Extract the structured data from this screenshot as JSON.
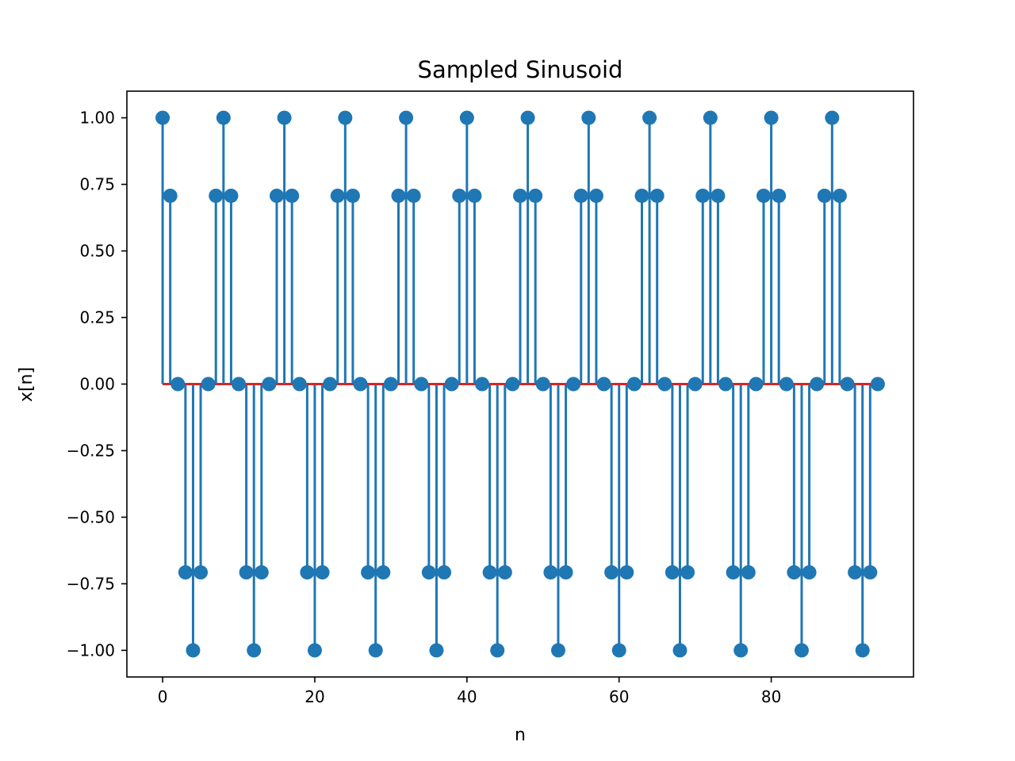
{
  "chart_data": {
    "type": "stem",
    "title": "Sampled Sinusoid",
    "xlabel": "n",
    "ylabel": "x[n]",
    "xlim": [
      -4.7,
      98.7
    ],
    "ylim": [
      -1.1,
      1.1
    ],
    "xticks": [
      0,
      20,
      40,
      60,
      80
    ],
    "xtick_labels": [
      "0",
      "20",
      "40",
      "60",
      "80"
    ],
    "yticks": [
      1.0,
      0.75,
      0.5,
      0.25,
      0.0,
      -0.25,
      -0.5,
      -0.75,
      -1.0
    ],
    "ytick_labels": [
      "1.00",
      "0.75",
      "0.50",
      "0.25",
      "0.00",
      "−0.25",
      "−0.50",
      "−0.75",
      "−1.00"
    ],
    "grid": false,
    "n": [
      0,
      1,
      2,
      3,
      4,
      5,
      6,
      7,
      8,
      9,
      10,
      11,
      12,
      13,
      14,
      15,
      16,
      17,
      18,
      19,
      20,
      21,
      22,
      23,
      24,
      25,
      26,
      27,
      28,
      29,
      30,
      31,
      32,
      33,
      34,
      35,
      36,
      37,
      38,
      39,
      40,
      41,
      42,
      43,
      44,
      45,
      46,
      47,
      48,
      49,
      50,
      51,
      52,
      53,
      54,
      55,
      56,
      57,
      58,
      59,
      60,
      61,
      62,
      63,
      64,
      65,
      66,
      67,
      68,
      69,
      70,
      71,
      72,
      73,
      74,
      75,
      76,
      77,
      78,
      79,
      80,
      81,
      82,
      83,
      84,
      85,
      86,
      87,
      88,
      89,
      90,
      91,
      92,
      93,
      94
    ],
    "values": [
      1.0,
      0.7071,
      0.0,
      -0.7071,
      -1.0,
      -0.7071,
      0.0,
      0.7071,
      1.0,
      0.7071,
      0.0,
      -0.7071,
      -1.0,
      -0.7071,
      0.0,
      0.7071,
      1.0,
      0.7071,
      0.0,
      -0.7071,
      -1.0,
      -0.7071,
      0.0,
      0.7071,
      1.0,
      0.7071,
      0.0,
      -0.7071,
      -1.0,
      -0.7071,
      0.0,
      0.7071,
      1.0,
      0.7071,
      0.0,
      -0.7071,
      -1.0,
      -0.7071,
      0.0,
      0.7071,
      1.0,
      0.7071,
      0.0,
      -0.7071,
      -1.0,
      -0.7071,
      0.0,
      0.7071,
      1.0,
      0.7071,
      0.0,
      -0.7071,
      -1.0,
      -0.7071,
      0.0,
      0.7071,
      1.0,
      0.7071,
      0.0,
      -0.7071,
      -1.0,
      -0.7071,
      0.0,
      0.7071,
      1.0,
      0.7071,
      0.0,
      -0.7071,
      -1.0,
      -0.7071,
      0.0,
      0.7071,
      1.0,
      0.7071,
      0.0,
      -0.7071,
      -1.0,
      -0.7071,
      0.0,
      0.7071,
      1.0,
      0.7071,
      0.0,
      -0.7071,
      -1.0,
      -0.7071,
      0.0,
      0.7071,
      1.0,
      0.7071,
      0.0,
      -0.7071,
      -1.0,
      -0.7071,
      0.0
    ],
    "colors": {
      "stem": "#1f77b4",
      "marker": "#1f77b4",
      "baseline": "#d62728",
      "axes": "#000000"
    }
  }
}
